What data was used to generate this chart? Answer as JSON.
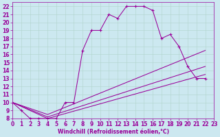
{
  "xlabel": "Windchill (Refroidissement éolien,°C)",
  "background_color": "#cce8f0",
  "grid_color": "#b0d4cc",
  "line_color": "#990099",
  "xlim": [
    0,
    23
  ],
  "ylim": [
    8,
    22.5
  ],
  "xticks": [
    0,
    1,
    2,
    3,
    4,
    5,
    6,
    7,
    8,
    9,
    10,
    11,
    12,
    13,
    14,
    15,
    16,
    17,
    18,
    19,
    20,
    21,
    22,
    23
  ],
  "yticks": [
    8,
    9,
    10,
    11,
    12,
    13,
    14,
    15,
    16,
    17,
    18,
    19,
    20,
    21,
    22
  ],
  "line1_x": [
    0,
    1,
    2,
    3,
    4,
    5,
    6,
    7,
    8,
    9,
    10,
    11,
    12,
    13,
    14,
    15,
    16,
    17,
    18,
    19,
    20,
    21,
    22
  ],
  "line1_y": [
    10,
    9,
    8,
    8,
    8,
    8,
    10,
    10,
    16.5,
    19,
    19,
    21,
    20.5,
    22,
    22,
    22,
    21.5,
    18,
    18.5,
    17,
    14.5,
    13,
    13
  ],
  "line2_x": [
    0,
    4,
    22
  ],
  "line2_y": [
    10,
    8,
    13.5
  ],
  "line3_x": [
    0,
    4,
    22
  ],
  "line3_y": [
    10,
    8.2,
    14.5
  ],
  "line4_x": [
    0,
    4,
    22
  ],
  "line4_y": [
    10,
    8.5,
    16.5
  ],
  "tick_fontsize": 5.5,
  "xlabel_fontsize": 5.5
}
